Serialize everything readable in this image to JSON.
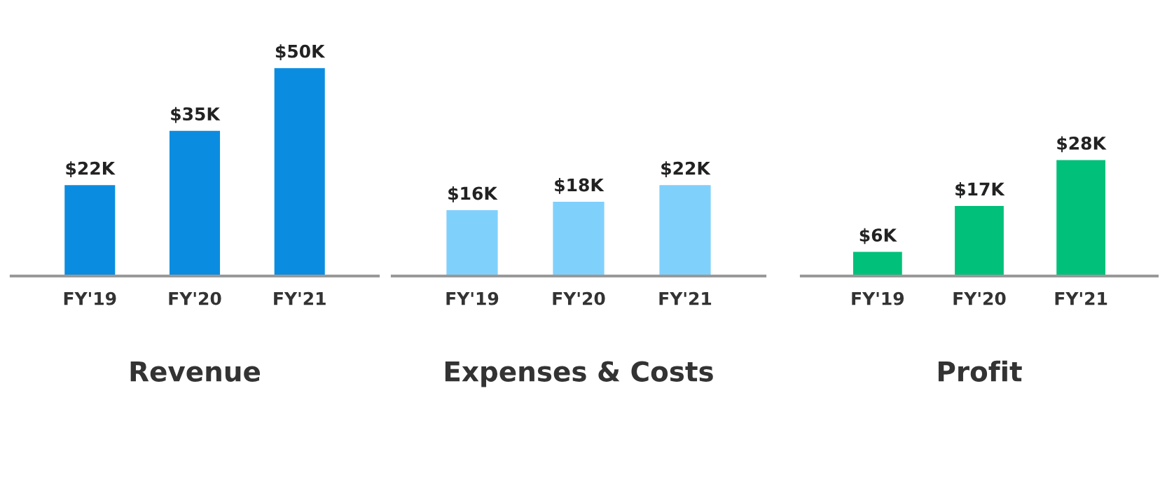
{
  "chart_data": [
    {
      "type": "bar",
      "title": "Revenue",
      "categories": [
        "FY'19",
        "FY'20",
        "FY'21"
      ],
      "values": [
        22,
        35,
        50
      ],
      "value_labels": [
        "$22K",
        "$35K",
        "$50K"
      ],
      "color": "#0a8de0",
      "tick_labels": "x",
      "grid": false,
      "legend": false
    },
    {
      "type": "bar",
      "title": "Expenses & Costs",
      "categories": [
        "FY'19",
        "FY'20",
        "FY'21"
      ],
      "values": [
        16,
        18,
        22
      ],
      "value_labels": [
        "$16K",
        "$18K",
        "$22K"
      ],
      "color": "#80d0fc",
      "tick_labels": "x",
      "grid": false,
      "legend": false
    },
    {
      "type": "bar",
      "title": "Profit",
      "categories": [
        "FY'19",
        "FY'20",
        "FY'21"
      ],
      "values": [
        6,
        17,
        28
      ],
      "value_labels": [
        "$6K",
        "$17K",
        "$28K"
      ],
      "color": "#00c07a",
      "tick_labels": "x",
      "grid": false,
      "legend": false
    }
  ]
}
